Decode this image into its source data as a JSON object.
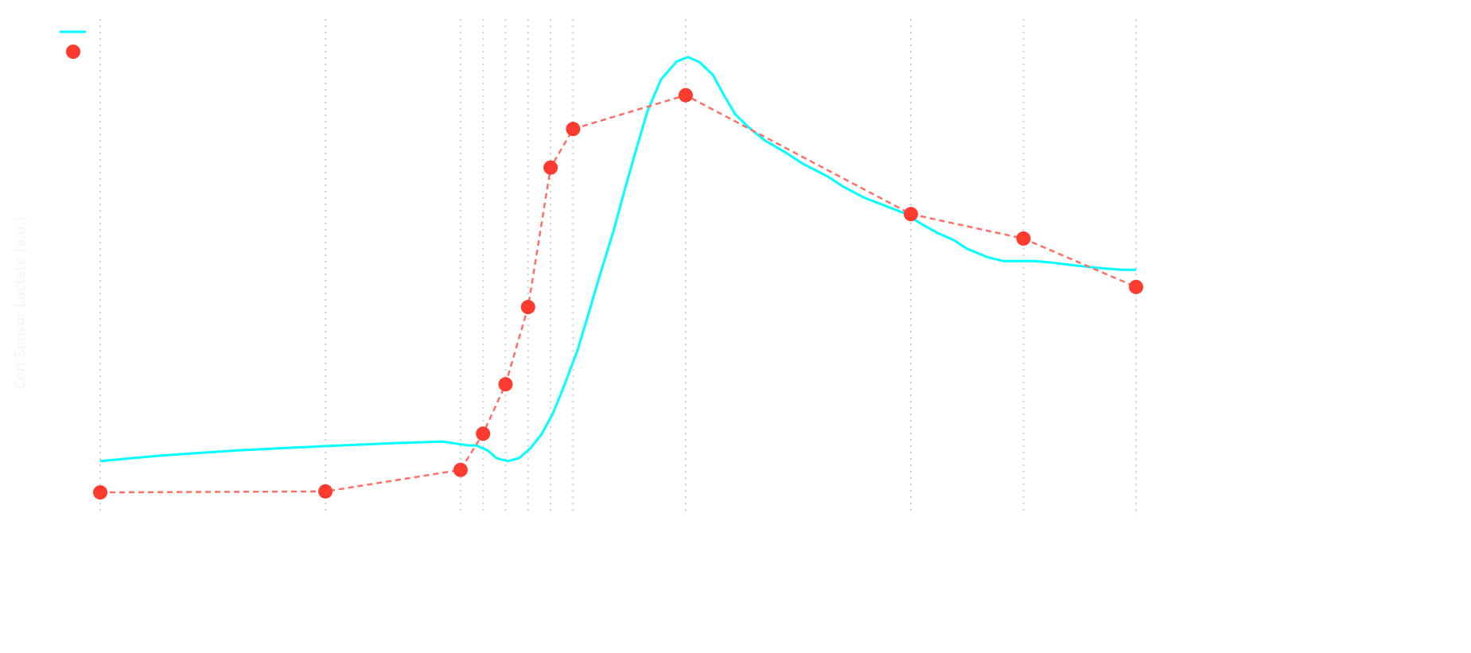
{
  "chart_data": {
    "type": "line",
    "title": "",
    "xlabel": "",
    "ylabel": "Cori Sensor Lactate (a.u.)",
    "xlim": [
      0,
      46
    ],
    "ylim": [
      0,
      10
    ],
    "grid": "vertical dotted lines at each marker x",
    "legend": "top-left",
    "series": [
      {
        "style": "solid line",
        "color": "#00ffff",
        "x": [
          0,
          2.6,
          6.1,
          9.7,
          13.2,
          15.2,
          15.9,
          16.4,
          16.7,
          17.2,
          17.6,
          18.1,
          18.6,
          19.1,
          19.6,
          20.1,
          20.6,
          21.2,
          21.7,
          22.2,
          22.8,
          23.3,
          23.8,
          24.3,
          24.9,
          25.6,
          26.1,
          26.6,
          27.2,
          27.7,
          28.2,
          28.8,
          29.5,
          30.4,
          31.2,
          32.3,
          33.0,
          33.9,
          34.8,
          35.7,
          36.5,
          37.2,
          37.9,
          38.5,
          39.4,
          40.1,
          40.8,
          41.5,
          42.2,
          43.3,
          44.3,
          45.4,
          46
        ],
        "y": [
          0.98,
          1.09,
          1.2,
          1.28,
          1.35,
          1.38,
          1.33,
          1.3,
          1.3,
          1.2,
          1.04,
          0.98,
          1.04,
          1.24,
          1.53,
          1.95,
          2.52,
          3.25,
          4.02,
          4.8,
          5.69,
          6.54,
          7.35,
          8.13,
          8.78,
          9.15,
          9.24,
          9.14,
          8.88,
          8.46,
          8.07,
          7.8,
          7.54,
          7.3,
          7.06,
          6.8,
          6.59,
          6.37,
          6.21,
          6.05,
          5.82,
          5.64,
          5.5,
          5.32,
          5.15,
          5.07,
          5.07,
          5.07,
          5.04,
          4.98,
          4.93,
          4.89,
          4.89
        ]
      },
      {
        "style": "markers with dashed line",
        "color": "#ff3b2f",
        "line_color": "#ff6f66",
        "x": [
          0,
          10,
          16,
          17,
          18,
          19,
          20,
          21,
          26,
          36,
          41,
          46
        ],
        "y": [
          0.34,
          0.36,
          0.8,
          1.54,
          2.55,
          4.13,
          6.98,
          7.77,
          8.46,
          6.03,
          5.53,
          4.54
        ]
      }
    ]
  }
}
